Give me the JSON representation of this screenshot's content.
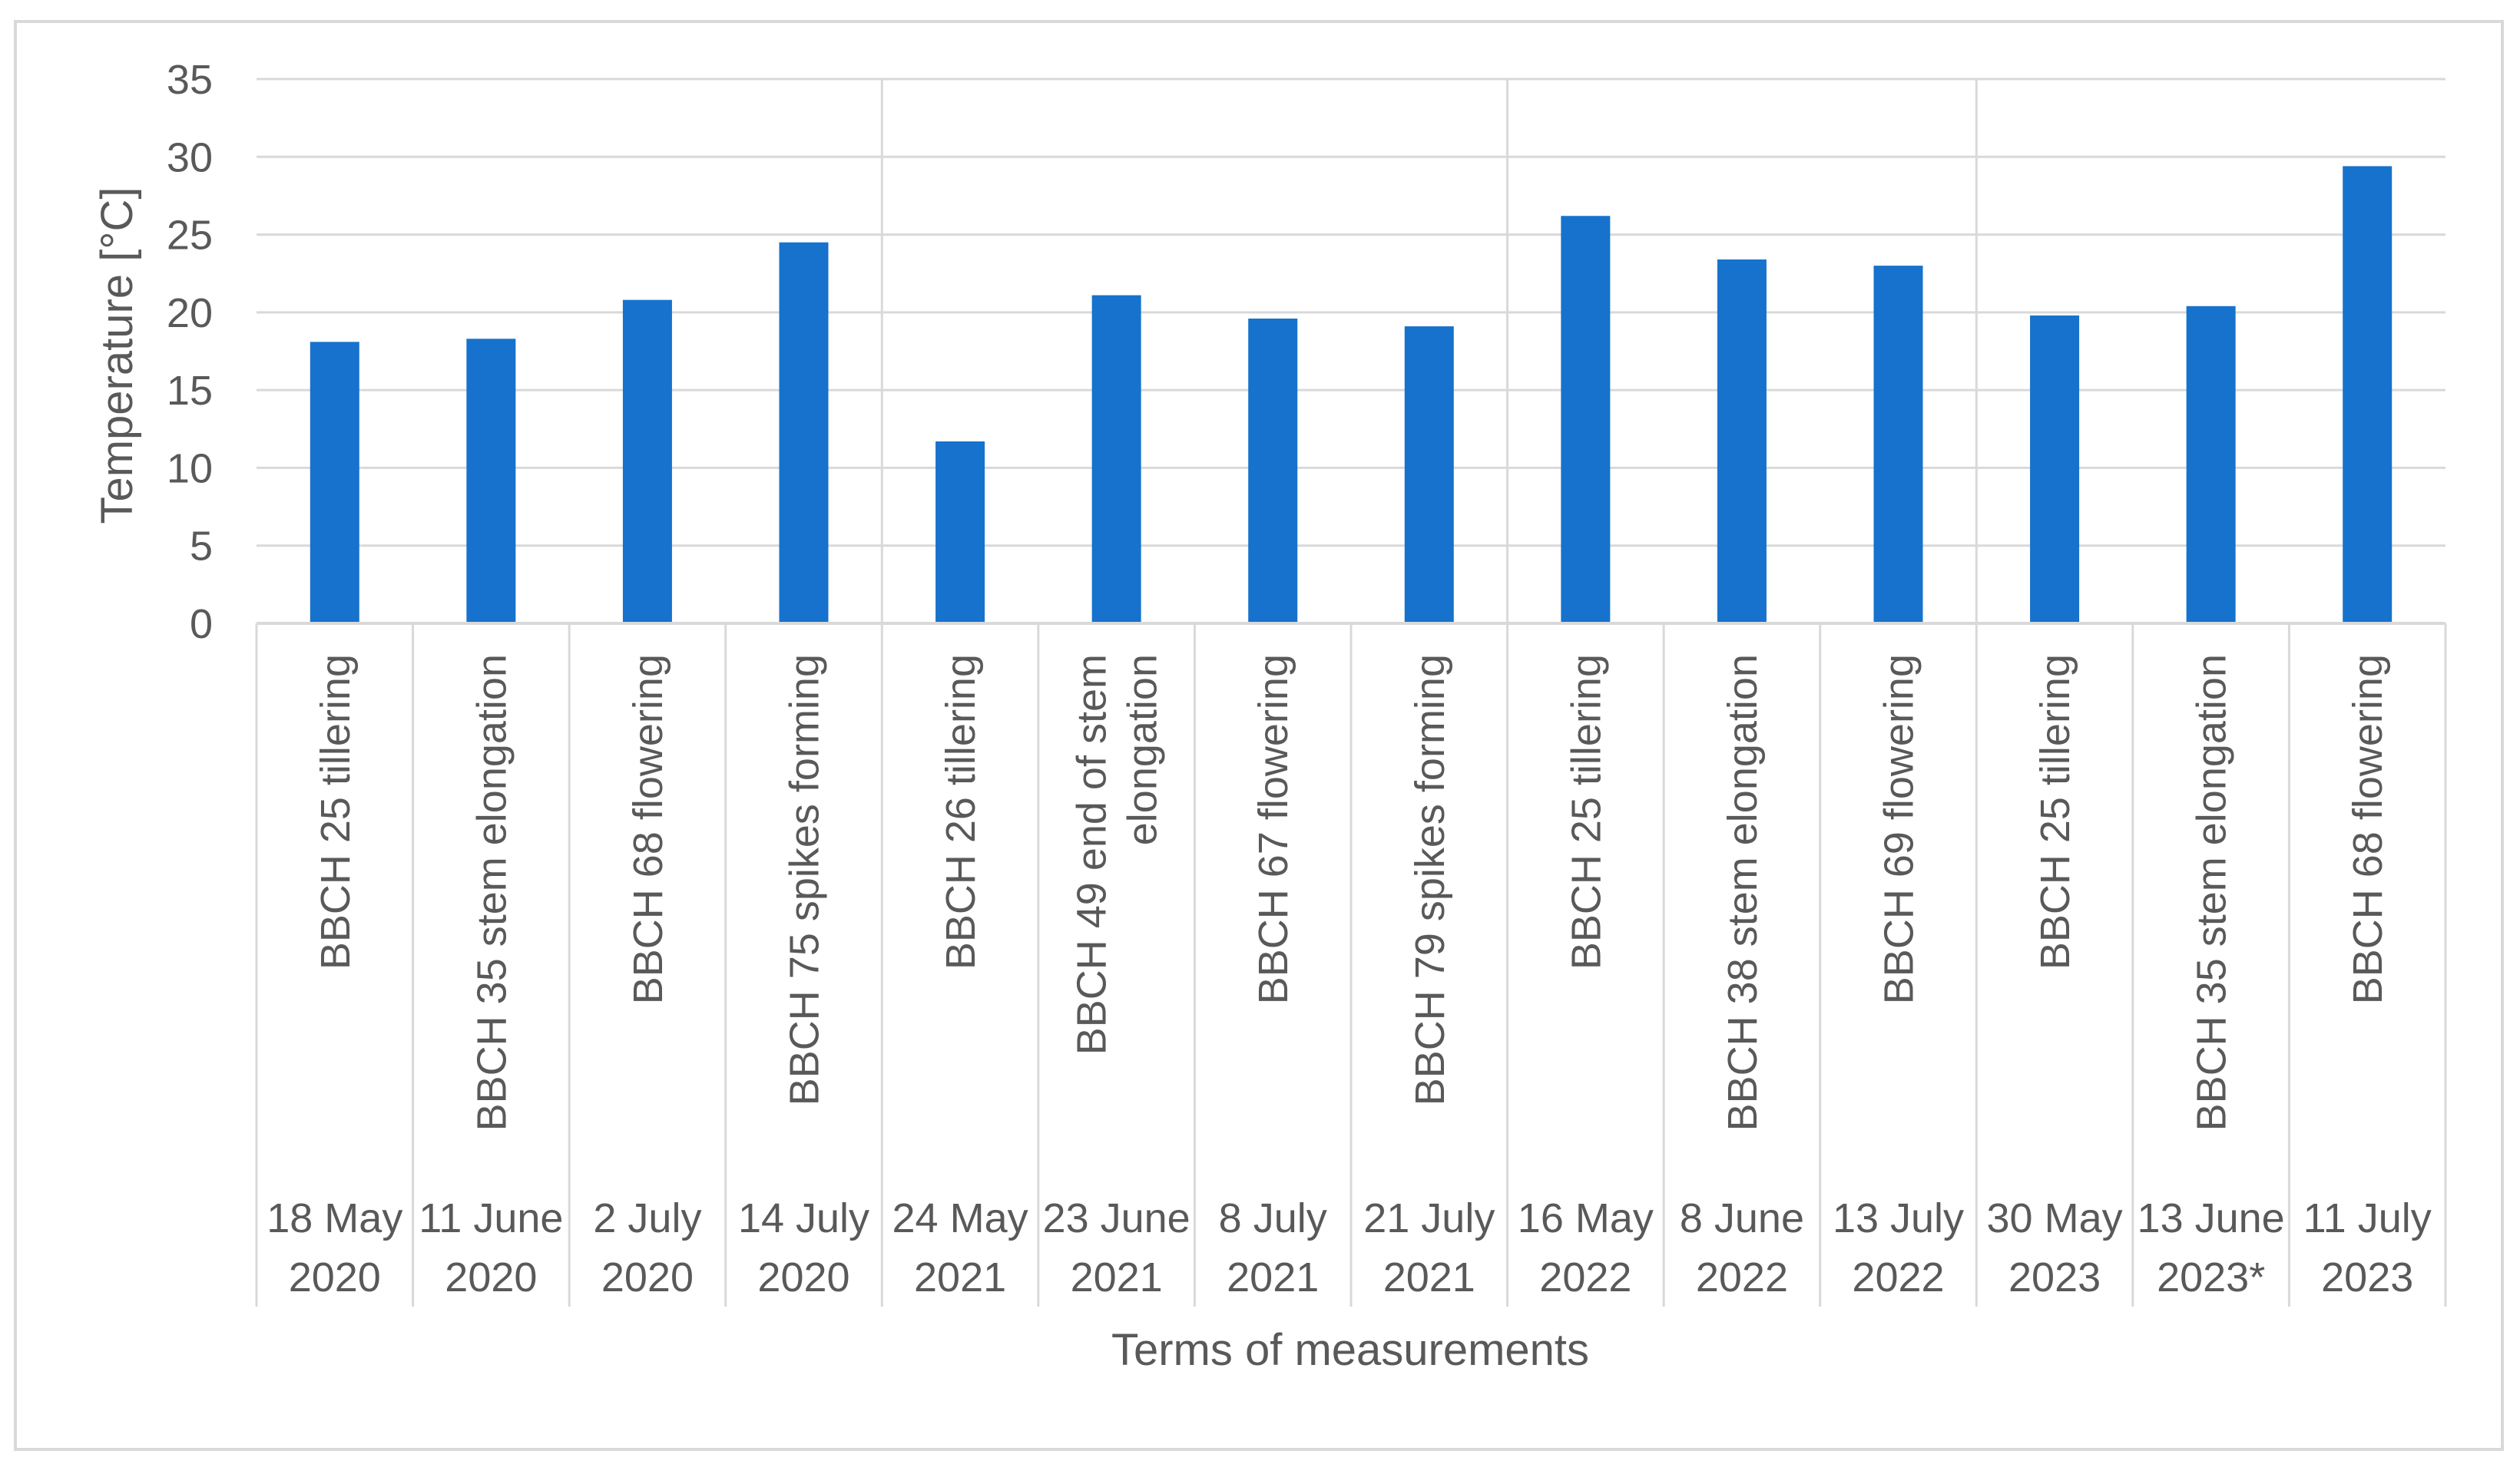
{
  "chart_data": {
    "type": "bar",
    "title": "",
    "ylabel": "Temperature [°C]",
    "xlabel": "Terms of measurements",
    "ylim": [
      0,
      35
    ],
    "yticks": [
      0,
      5,
      10,
      15,
      20,
      25,
      30,
      35
    ],
    "grid": true,
    "legend": "none",
    "bar_color": "#1672CC",
    "categories": [
      {
        "stage": "BBCH 25 tillering",
        "date": [
          "18 May",
          "2020"
        ]
      },
      {
        "stage": "BBCH 35 stem elongation",
        "date": [
          "11 June",
          "2020"
        ]
      },
      {
        "stage": "BBCH 68 flowering",
        "date": [
          "2 July",
          "2020"
        ]
      },
      {
        "stage": "BBCH 75 spikes forming",
        "date": [
          "14 July",
          "2020"
        ]
      },
      {
        "stage": "BBCH 26 tillering",
        "date": [
          "24 May",
          "2021"
        ]
      },
      {
        "stage": [
          "BBCH 49 end of stem",
          "elongation"
        ],
        "date": [
          "23 June",
          "2021"
        ]
      },
      {
        "stage": "BBCH 67 flowering",
        "date": [
          "8 July",
          "2021"
        ]
      },
      {
        "stage": "BBCH 79 spikes forming",
        "date": [
          "21 July",
          "2021"
        ]
      },
      {
        "stage": "BBCH 25 tillering",
        "date": [
          "16 May",
          "2022"
        ]
      },
      {
        "stage": "BBCH 38 stem elongation",
        "date": [
          "8 June",
          "2022"
        ]
      },
      {
        "stage": "BBCH 69 flowering",
        "date": [
          "13 July",
          "2022"
        ]
      },
      {
        "stage": "BBCH 25 tillering",
        "date": [
          "30 May",
          "2023"
        ]
      },
      {
        "stage": "BBCH 35 stem elongation",
        "date": [
          "13 June",
          "2023*"
        ]
      },
      {
        "stage": "BBCH 68 flowering",
        "date": [
          "11 July",
          "2023"
        ]
      }
    ],
    "values": [
      18.1,
      18.3,
      20.8,
      24.5,
      11.7,
      21.1,
      19.6,
      19.1,
      26.2,
      23.4,
      23.0,
      19.8,
      20.4,
      29.4
    ]
  }
}
